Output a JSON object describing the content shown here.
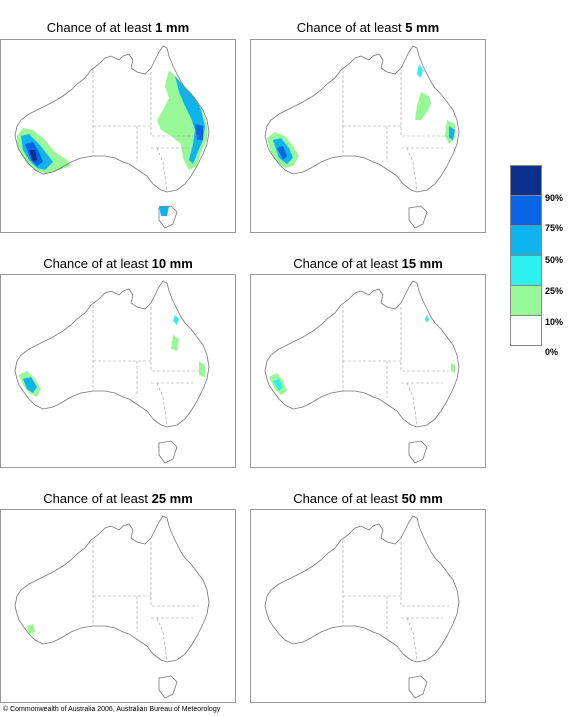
{
  "panels": [
    {
      "title_prefix": "Chance of at least",
      "amount": "1 mm"
    },
    {
      "title_prefix": "Chance of at least",
      "amount": "5 mm"
    },
    {
      "title_prefix": "Chance of at least",
      "amount": "10 mm"
    },
    {
      "title_prefix": "Chance of at least",
      "amount": "15 mm"
    },
    {
      "title_prefix": "Chance of at least",
      "amount": "25 mm"
    },
    {
      "title_prefix": "Chance of at least",
      "amount": "50 mm"
    }
  ],
  "legend": {
    "bands": [
      {
        "range": "90%+",
        "color": "#0a2f8c"
      },
      {
        "range": "75-90%",
        "color": "#0a64e6"
      },
      {
        "range": "50-75%",
        "color": "#10b4ec"
      },
      {
        "range": "25-50%",
        "color": "#2ef0f0"
      },
      {
        "range": "10-25%",
        "color": "#98f898"
      },
      {
        "range": "0-10%",
        "color": "#ffffff"
      }
    ],
    "labels": [
      "90%",
      "75%",
      "50%",
      "25%",
      "10%",
      "0%"
    ]
  },
  "copyright": "© Commonwealth of Australia 2006, Australian Bureau of Meteorology"
}
